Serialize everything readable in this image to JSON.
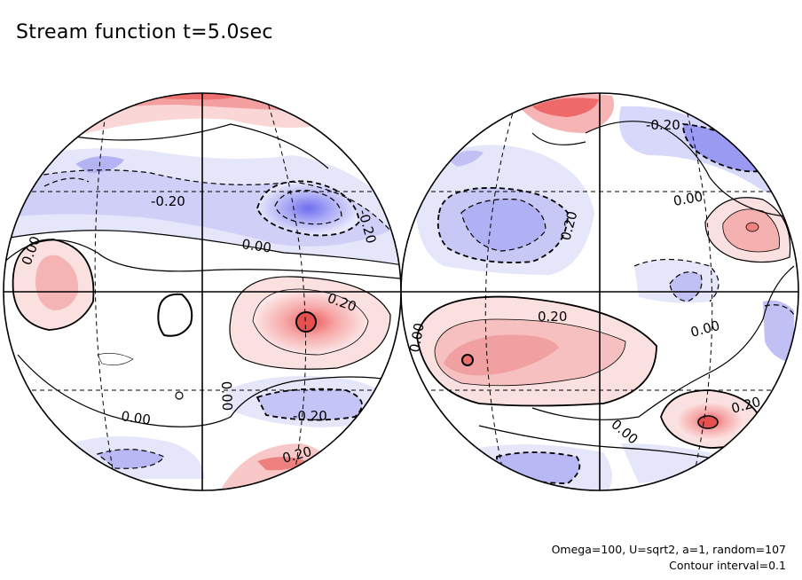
{
  "title": "Stream function t=5.0sec",
  "footer": {
    "params": "Omega=100, U=sqrt2, a=1, random=107",
    "interval": "Contour interval=0.1"
  },
  "colors": {
    "positive": "#f07070",
    "positive_light": "#fbe4e4",
    "negative": "#7a7af0",
    "negative_light": "#e6e6fb",
    "line": "#000000"
  },
  "labels": {
    "left": {
      "a": "-0.20",
      "b": "-0.20",
      "c": "0.00",
      "d": "0.00",
      "e": "0.20",
      "f": "0.00",
      "g": "-0.20",
      "h": "0.00",
      "i": "0.20"
    },
    "right": {
      "a": "-0.20",
      "b": "0.00",
      "c": "0.20",
      "d": "0.20",
      "e": "0.00",
      "f": "0.00",
      "g": "0.00",
      "h": "0.20"
    }
  }
}
